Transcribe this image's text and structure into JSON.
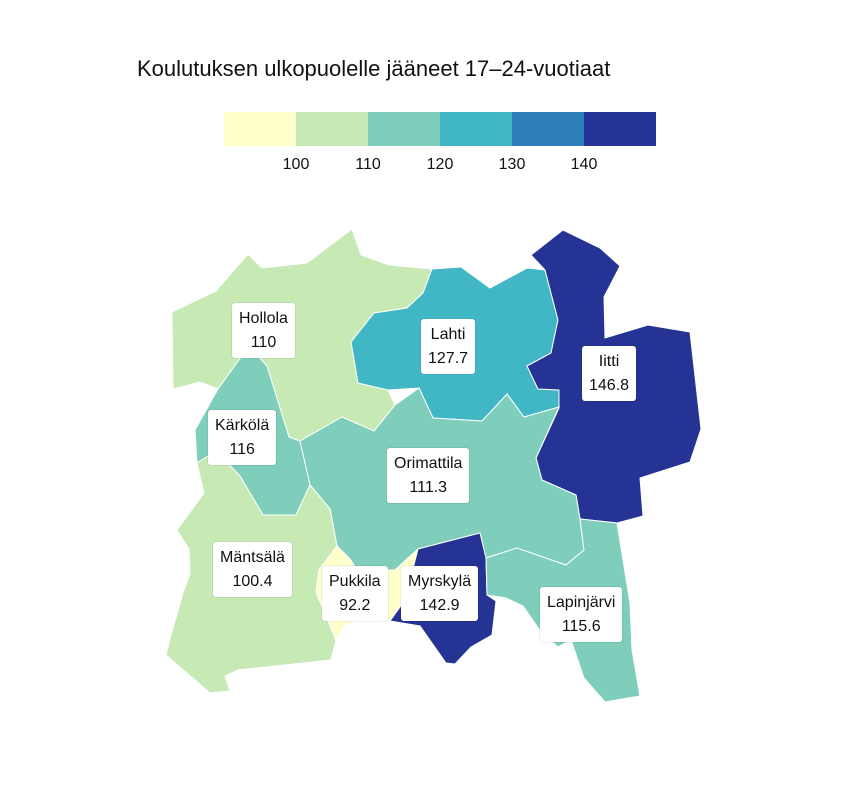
{
  "title": "Koulutuksen ulkopuolelle jääneet 17–24-vuotiaat",
  "legend": {
    "colors": [
      "#ffffcc",
      "#c7e9b4",
      "#7fcdbb",
      "#41b6c4",
      "#2c7fb8",
      "#253494"
    ],
    "ticks": [
      "100",
      "110",
      "120",
      "130",
      "140"
    ]
  },
  "regions": [
    {
      "name": "Hollola",
      "value": "110",
      "color": "#c7e9b4"
    },
    {
      "name": "Lahti",
      "value": "127.7",
      "color": "#41b6c4"
    },
    {
      "name": "Iitti",
      "value": "146.8",
      "color": "#253494"
    },
    {
      "name": "Kärkölä",
      "value": "116",
      "color": "#7fcdbb"
    },
    {
      "name": "Orimattila",
      "value": "111.3",
      "color": "#7fcdbb"
    },
    {
      "name": "Mäntsälä",
      "value": "100.4",
      "color": "#c7e9b4"
    },
    {
      "name": "Pukkila",
      "value": "92.2",
      "color": "#ffffcc"
    },
    {
      "name": "Myrskylä",
      "value": "142.9",
      "color": "#253494"
    },
    {
      "name": "Lapinjärvi",
      "value": "115.6",
      "color": "#7fcdbb"
    }
  ]
}
